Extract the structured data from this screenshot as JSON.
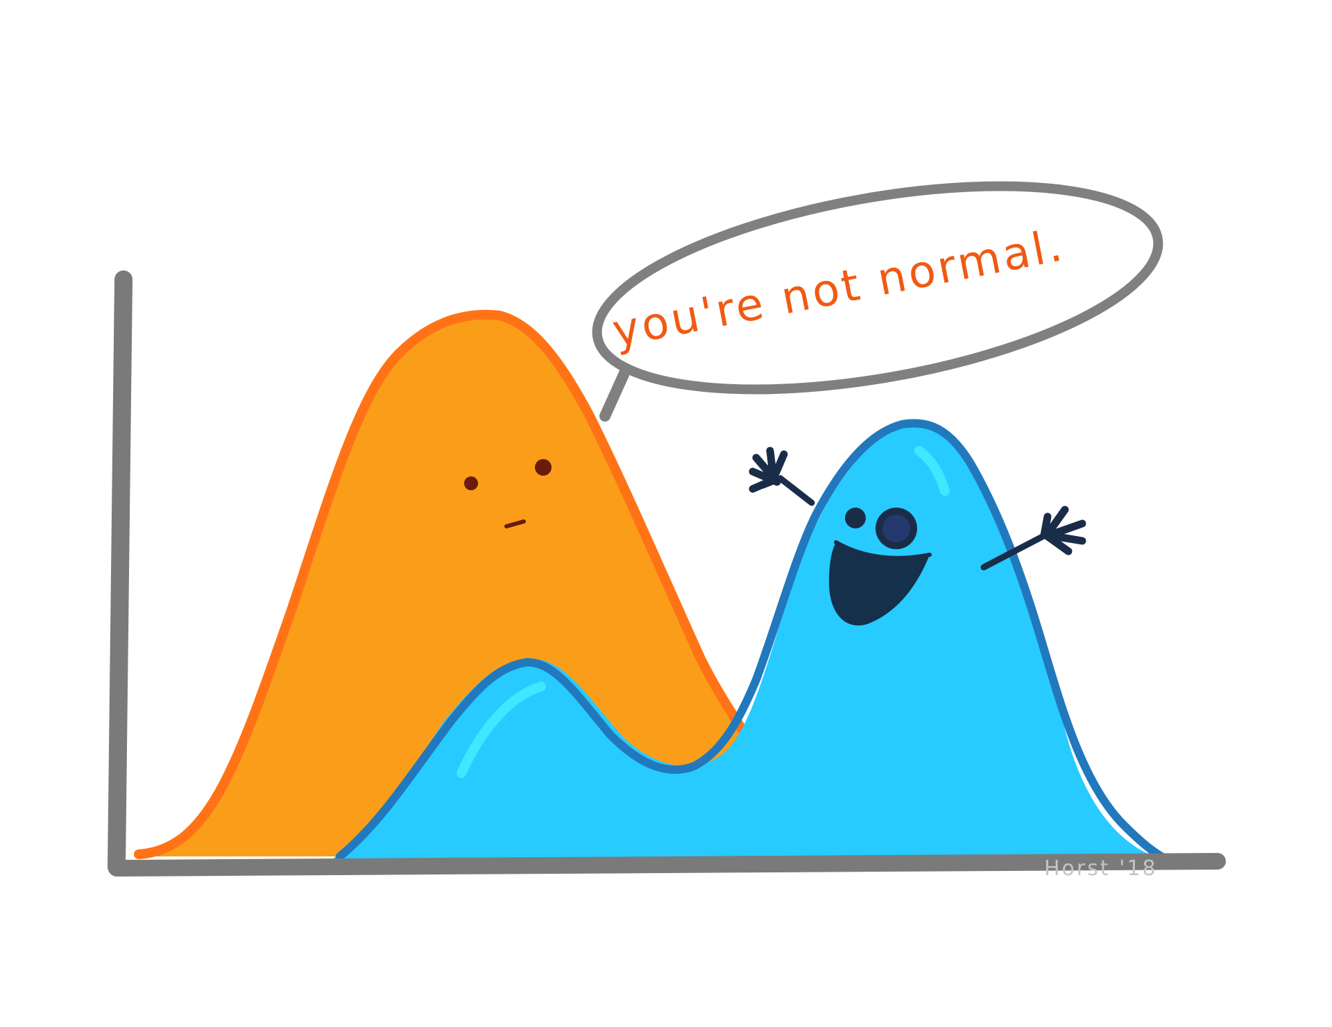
{
  "speech_bubble": {
    "text": "you're not normal."
  },
  "signature": {
    "text": "Horst '18"
  },
  "characters": {
    "normal_curve": {
      "expression": "unimpressed"
    },
    "bimodal_curve": {
      "expression": "happy waving"
    }
  },
  "colors": {
    "background": "#ffffff",
    "axis": "#7a7a7a",
    "orange_fill": "#fa9e1a",
    "orange_outline": "#ff7316",
    "blue_fill": "#27cbff",
    "blue_outline": "#2278bc",
    "blue_highlight": "#3fe8ff",
    "dark_navy": "#1a2d48",
    "speech_text": "#f05a12",
    "signature": "#c4c4c4"
  }
}
